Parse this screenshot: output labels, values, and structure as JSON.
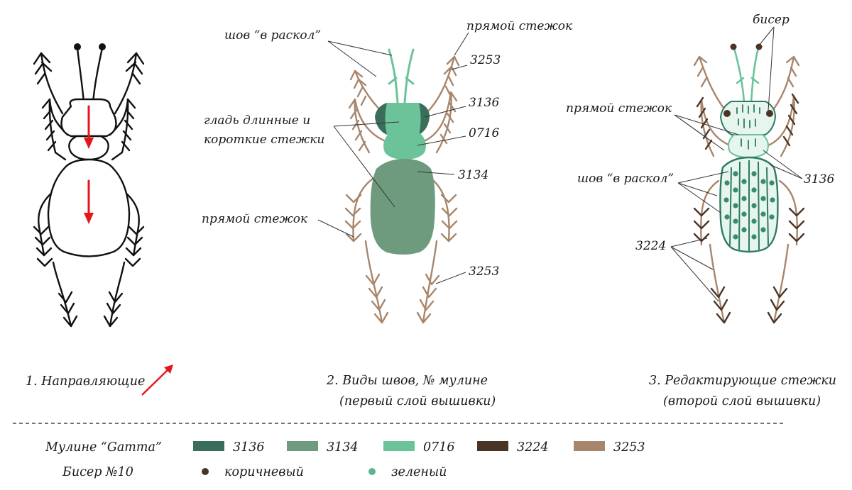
{
  "panels": {
    "p1": {
      "caption": "1. Направляющие"
    },
    "p2": {
      "caption_line1": "2. Виды швов, № мулине",
      "caption_line2": "(первый слой вышивки)",
      "labels": {
        "split_stitch": "шов “в раскол”",
        "straight_stitch_top": "прямой стежок",
        "code_3253_top": "3253",
        "satin_line1": "гладь длинные и",
        "satin_line2": "короткие стежки",
        "code_3136": "3136",
        "code_0716": "0716",
        "code_3134": "3134",
        "straight_stitch_left": "прямой стежок",
        "code_3253_bottom": "3253"
      }
    },
    "p3": {
      "caption_line1": "3. Редактирующие стежки",
      "caption_line2": "(второй слой вышивки)",
      "labels": {
        "beads": "бисер",
        "straight_stitch": "прямой стежок",
        "code_3136": "3136",
        "split_stitch": "шов “в раскол”",
        "code_3224": "3224"
      }
    }
  },
  "legend": {
    "threads_label": "Мулине “Gamma”",
    "threads": [
      {
        "code": "3136",
        "color": "#3a6e5a"
      },
      {
        "code": "3134",
        "color": "#6e9b7e"
      },
      {
        "code": "0716",
        "color": "#6cc39a"
      },
      {
        "code": "3224",
        "color": "#4a3426"
      },
      {
        "code": "3253",
        "color": "#a8866c"
      }
    ],
    "beads_label": "Бисер №10",
    "beads": [
      {
        "name": "коричневый",
        "color": "#4a3426"
      },
      {
        "name": "зеленый",
        "color": "#5ab68e"
      }
    ]
  },
  "colors": {
    "outline_black": "#111111",
    "arrow_red": "#e3161b",
    "leg_tan": "#a8866c",
    "leg_dark": "#4a3426",
    "outline_green": "#2f7a63",
    "fill_light": "#e6f5ee"
  }
}
